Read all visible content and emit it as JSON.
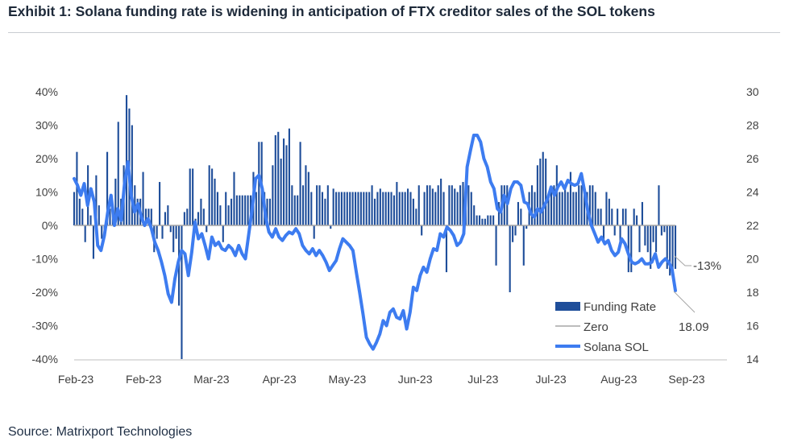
{
  "header": {
    "title": "Exhibit 1: Solana funding rate is widening in anticipation of FTX creditor sales of the SOL tokens"
  },
  "footer": {
    "source": "Source: Matrixport Technologies"
  },
  "chart_data": {
    "type": "bar+line",
    "title": "Exhibit 1: Solana funding rate is widening in anticipation of FTX creditor sales of the SOL tokens",
    "x_tick_labels": [
      "Feb-23",
      "Feb-23",
      "Mar-23",
      "Apr-23",
      "May-23",
      "Jun-23",
      "Jul-23",
      "Jul-23",
      "Aug-23",
      "Sep-23"
    ],
    "y_left": {
      "ticks": [
        "40%",
        "30%",
        "20%",
        "10%",
        "0%",
        "-10%",
        "-20%",
        "-30%",
        "-40%"
      ],
      "range": [
        -40,
        40
      ]
    },
    "y_right": {
      "ticks": [
        "30",
        "28",
        "26",
        "24",
        "22",
        "20",
        "18",
        "16",
        "14"
      ],
      "range": [
        14,
        30
      ]
    },
    "legend": [
      "Funding Rate",
      "Zero",
      "Solana SOL"
    ],
    "annotations": {
      "funding_end": "-13%",
      "sol_end": "18.09"
    },
    "colors": {
      "bars": "#1f4e9a",
      "sol_line": "#3d7cf0",
      "zero": "#a6a6a6"
    },
    "series": [
      {
        "name": "Funding Rate",
        "unit": "%",
        "values": [
          10,
          22,
          8,
          5,
          -5,
          18,
          3,
          -10,
          15,
          6,
          -4,
          -3,
          22,
          5,
          5,
          14,
          31,
          8,
          18,
          39,
          35,
          30,
          12,
          8,
          8,
          16,
          5,
          5,
          5,
          -8,
          -4,
          13,
          -4,
          4,
          6,
          -2,
          -8,
          -4,
          -24,
          -40,
          4,
          5,
          17,
          17,
          2,
          4,
          8,
          5,
          -2,
          18,
          17,
          14,
          10,
          6,
          -5,
          10,
          6,
          8,
          16,
          9,
          9,
          9,
          9,
          9,
          9,
          16,
          10,
          25,
          25,
          10,
          8,
          8,
          18,
          27,
          28,
          20,
          26,
          24,
          29,
          12,
          9,
          9,
          25,
          12,
          18,
          16,
          10,
          -4,
          12,
          12,
          10,
          8,
          12,
          -1,
          11,
          10,
          10,
          10,
          10,
          10,
          10,
          10,
          10,
          10,
          10,
          10,
          10,
          10,
          12,
          8,
          10,
          11,
          10,
          10,
          10,
          10,
          9,
          13,
          10,
          10,
          10,
          11,
          10,
          8,
          5,
          12,
          -3,
          10,
          12,
          12,
          11,
          10,
          12,
          14,
          10,
          -14,
          12,
          12,
          11,
          10,
          12,
          13,
          12,
          12,
          10,
          6,
          3,
          3,
          2,
          2,
          3,
          3,
          3,
          -12,
          7,
          12,
          12,
          12,
          -20,
          -5,
          -3,
          7,
          5,
          -12,
          -1,
          10,
          12,
          10,
          18,
          20,
          22,
          20,
          8,
          10,
          12,
          18,
          10,
          10,
          12,
          10,
          16,
          10,
          10,
          12,
          12,
          10,
          10,
          12,
          12,
          10,
          5,
          5,
          -5,
          10,
          8,
          5,
          -3,
          5,
          -5,
          5,
          5,
          -14,
          -14,
          5,
          3,
          -8,
          7,
          -6,
          -8,
          -13,
          -5,
          -8,
          12,
          -3,
          -2,
          -13,
          -15,
          -13,
          -13
        ]
      },
      {
        "name": "Zero",
        "unit": "%",
        "values": [
          0,
          0
        ]
      },
      {
        "name": "Solana SOL",
        "unit": "USD",
        "values": [
          24.8,
          24.4,
          23.8,
          24.5,
          23.2,
          24.2,
          23.4,
          20.8,
          20.5,
          21.4,
          22.8,
          23.8,
          22.0,
          23.0,
          22.3,
          24.5,
          25.8,
          23.8,
          22.8,
          23.3,
          22.5,
          22.0,
          22.4,
          21.8,
          21.0,
          20.5,
          19.8,
          19.0,
          17.9,
          17.4,
          18.8,
          19.8,
          20.5,
          20.3,
          19.0,
          20.4,
          22.2,
          21.2,
          21.5,
          20.8,
          20.0,
          21.3,
          20.8,
          21.0,
          20.6,
          20.5,
          20.8,
          20.6,
          20.2,
          20.8,
          20.3,
          20.0,
          21.5,
          23.0,
          24.8,
          25.0,
          24.2,
          22.5,
          21.6,
          21.3,
          21.8,
          21.3,
          21.1,
          21.4,
          21.6,
          21.5,
          21.8,
          21.5,
          20.8,
          20.5,
          20.3,
          20.6,
          20.2,
          20.5,
          20.2,
          19.8,
          19.3,
          19.6,
          19.9,
          20.6,
          21.2,
          21.0,
          20.8,
          20.5,
          19.2,
          18.0,
          16.7,
          15.3,
          14.9,
          14.6,
          15.0,
          15.5,
          16.3,
          16.0,
          16.8,
          17.0,
          16.5,
          16.4,
          16.9,
          15.8,
          16.8,
          18.3,
          18.1,
          19.0,
          19.5,
          19.2,
          20.0,
          20.6,
          20.5,
          21.5,
          21.3,
          21.9,
          21.7,
          21.4,
          20.8,
          21.0,
          21.5,
          25.5,
          26.5,
          27.4,
          27.4,
          27.0,
          26.0,
          25.5,
          24.6,
          24.2,
          23.0,
          22.8,
          23.8,
          23.3,
          24.2,
          24.6,
          24.6,
          24.4,
          23.4,
          23.3,
          22.7,
          22.5,
          23.0,
          22.8,
          23.2,
          23.6,
          24.3,
          23.8,
          24.3,
          24.6,
          24.2,
          24.7,
          24.5,
          24.4,
          24.5,
          25.1,
          24.0,
          22.8,
          22.0,
          21.5,
          21.0,
          21.3,
          20.9,
          21.1,
          20.5,
          20.2,
          20.4,
          21.2,
          20.9,
          20.3,
          19.8,
          19.7,
          19.8,
          20.0,
          19.7,
          19.7,
          19.8,
          20.3,
          19.5,
          19.8,
          20.0,
          19.8,
          19.4,
          18.1
        ]
      }
    ]
  }
}
